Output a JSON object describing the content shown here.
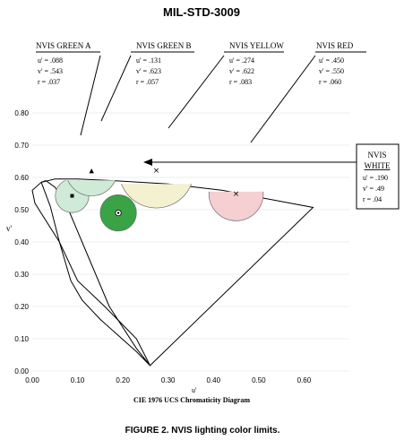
{
  "header": {
    "title": "MIL-STD-3009"
  },
  "caption": "FIGURE 2.  NVIS lighting color limits.",
  "chart_data": {
    "type": "scatter",
    "xlabel": "u'",
    "ylabel": "v'",
    "subtitle": "CIE 1976 UCS Chromaticity Diagram",
    "xlim": [
      0,
      0.7
    ],
    "ylim": [
      0,
      0.85
    ],
    "x_ticks": [
      "0.00",
      "0.10",
      "0.20",
      "0.30",
      "0.40",
      "0.50",
      "0.60"
    ],
    "y_ticks": [
      "0.00",
      "0.10",
      "0.20",
      "0.30",
      "0.40",
      "0.50",
      "0.60",
      "0.70",
      "0.80"
    ],
    "x_tick_values": [
      0,
      0.1,
      0.2,
      0.3,
      0.4,
      0.5,
      0.6
    ],
    "y_tick_values": [
      0,
      0.1,
      0.2,
      0.3,
      0.4,
      0.5,
      0.6,
      0.7,
      0.8
    ],
    "grid": "horizontal",
    "locus": [
      [
        0.26,
        0.017
      ],
      [
        0.23,
        0.07
      ],
      [
        0.17,
        0.2
      ],
      [
        0.14,
        0.3
      ],
      [
        0.11,
        0.4
      ],
      [
        0.08,
        0.5
      ],
      [
        0.06,
        0.55
      ],
      [
        0.05,
        0.57
      ],
      [
        0.03,
        0.59
      ],
      [
        0.02,
        0.585
      ],
      [
        0.04,
        0.51
      ],
      [
        0.06,
        0.4
      ],
      [
        0.085,
        0.28
      ],
      [
        0.11,
        0.22
      ],
      [
        0.15,
        0.16
      ],
      [
        0.23,
        0.06
      ],
      [
        0.26,
        0.017
      ]
    ],
    "gamut": [
      [
        0.26,
        0.017
      ],
      [
        0.62,
        0.507
      ],
      [
        0.57,
        0.52
      ],
      [
        0.42,
        0.56
      ],
      [
        0.3,
        0.58
      ],
      [
        0.18,
        0.59
      ],
      [
        0.1,
        0.595
      ],
      [
        0.05,
        0.595
      ],
      [
        0.02,
        0.585
      ],
      [
        0.0,
        0.56
      ],
      [
        0.006,
        0.52
      ],
      [
        0.06,
        0.4
      ],
      [
        0.1,
        0.28
      ],
      [
        0.16,
        0.2
      ],
      [
        0.23,
        0.1
      ],
      [
        0.26,
        0.017
      ]
    ],
    "regions": [
      {
        "name": "NVIS GREEN A",
        "u_label": "u' = .088",
        "v_label": "v' = .543",
        "r_label": "r  = .037",
        "u": 0.088,
        "v": 0.543,
        "r": 0.037,
        "color": "#cfead6",
        "clip_top": 0.591,
        "center_marker": "square"
      },
      {
        "name": "NVIS GREEN B",
        "u_label": "u' = .131",
        "v_label": "v' = .623",
        "r_label": "r  = .057",
        "u": 0.131,
        "v": 0.623,
        "r": 0.057,
        "color": "#cfead6",
        "clip_top": 0.591
      },
      {
        "name": "NVIS YELLOW",
        "u_label": "u' = .274",
        "v_label": "v' = .622",
        "r_label": "r  = .083",
        "u": 0.274,
        "v": 0.622,
        "r": 0.083,
        "color": "#f3f1cf",
        "clip_top": 0.58
      },
      {
        "name": "NVIS RED",
        "u_label": "u' = .450",
        "v_label": "v' = .550",
        "r_label": "r  = .060",
        "u": 0.45,
        "v": 0.55,
        "r": 0.06,
        "color": "#f6cfd2",
        "clip_top": 0.556
      },
      {
        "name": "NVIS WHITE",
        "u_label": "u' = .190",
        "v_label": "v' = .49",
        "r_label": "r  = .04",
        "u": 0.19,
        "v": 0.49,
        "r": 0.04,
        "color": "#39a346",
        "clip_top": 1.0,
        "center_marker": "target"
      }
    ],
    "markers": [
      {
        "symbol": "▲",
        "u": 0.131,
        "v": 0.623
      },
      {
        "symbol": "×",
        "u": 0.274,
        "v": 0.622
      },
      {
        "symbol": "×",
        "u": 0.45,
        "v": 0.55
      }
    ],
    "labels": {
      "green_a": {
        "name": "NVIS GREEN A",
        "lines": [
          "u' = .088",
          "v' = .543",
          "r  = .037"
        ]
      },
      "green_b": {
        "name": "NVIS GREEN B",
        "lines": [
          "u' = .131",
          "v' = .623",
          "r  = .057"
        ]
      },
      "yellow": {
        "name": "NVIS YELLOW",
        "lines": [
          "u' = .274",
          "v' = .622",
          "r  = .083"
        ]
      },
      "red": {
        "name": "NVIS RED",
        "lines": [
          "u' = .450",
          "v' = .550",
          "r  = .060"
        ]
      },
      "white": {
        "name_top": "NVIS",
        "name_bottom": "WHITE",
        "lines": [
          "u' = .190",
          "v' = .49",
          "r  = .04"
        ]
      }
    }
  }
}
